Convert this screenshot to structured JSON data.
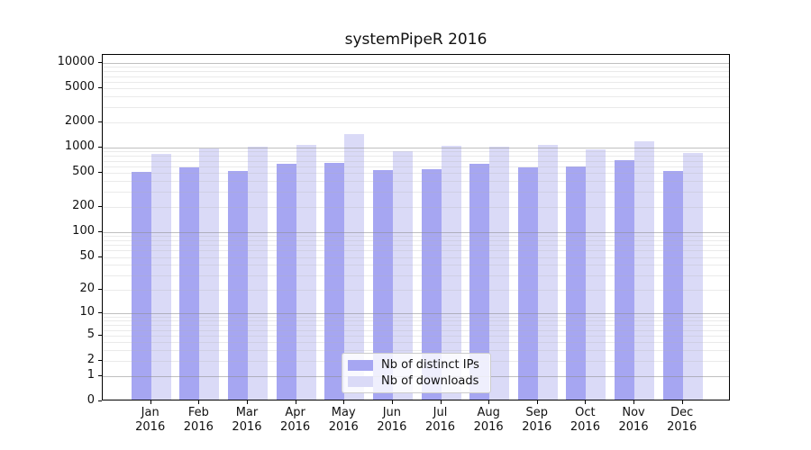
{
  "title": "systemPipeR 2016",
  "legend": {
    "items": [
      {
        "label": "Nb of distinct IPs"
      },
      {
        "label": "Nb of downloads"
      }
    ]
  },
  "chart_data": {
    "type": "bar",
    "title": "systemPipeR 2016",
    "categories": [
      "Jan",
      "Feb",
      "Mar",
      "Apr",
      "May",
      "Jun",
      "Jul",
      "Aug",
      "Sep",
      "Oct",
      "Nov",
      "Dec"
    ],
    "category_year": "2016",
    "series": [
      {
        "name": "Nb of distinct IPs",
        "color": "#a6a6f2",
        "values": [
          495,
          560,
          505,
          610,
          625,
          515,
          525,
          610,
          560,
          570,
          670,
          505
        ]
      },
      {
        "name": "Nb of downloads",
        "color": "#dadaf7",
        "values": [
          810,
          930,
          965,
          1020,
          1375,
          855,
          990,
          965,
          1030,
          915,
          1120,
          820
        ]
      }
    ],
    "yscale": "log1p",
    "ylim": [
      0,
      12500
    ],
    "ytick_values": [
      0,
      1,
      2,
      5,
      10,
      20,
      50,
      100,
      200,
      500,
      1000,
      2000,
      5000,
      10000
    ],
    "grid": {
      "on": true,
      "major_decades": [
        1,
        10,
        100,
        1000,
        10000
      ],
      "minor_per_decade": [
        2,
        3,
        4,
        5,
        6,
        7,
        8,
        9
      ]
    },
    "legend_position": "lower center",
    "xlabel": "",
    "ylabel": ""
  }
}
